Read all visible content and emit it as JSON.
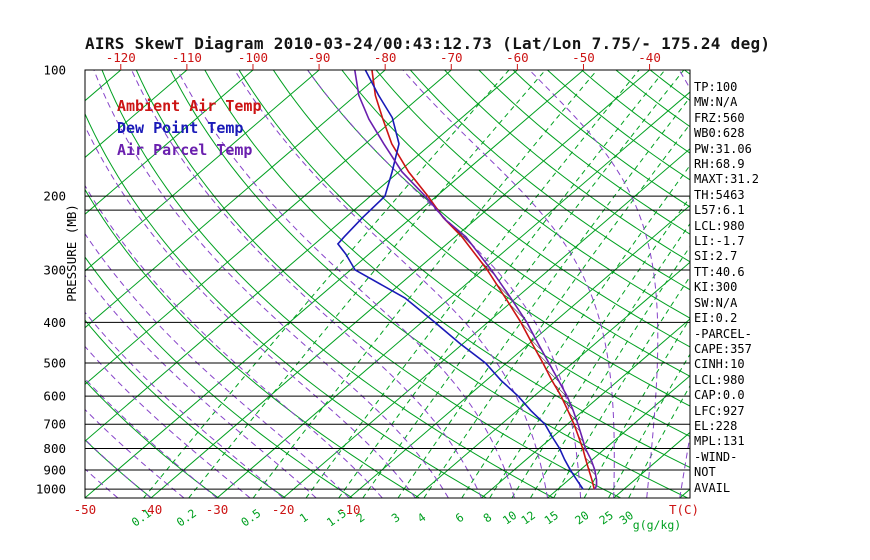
{
  "title": "AIRS SkewT Diagram 2010-03-24/00:43:12.73 (Lat/Lon 7.75/- 175.24 deg)",
  "legend": [
    {
      "label": "Ambient Air Temp",
      "color": "#cc1414"
    },
    {
      "label": "Dew Point Temp",
      "color": "#1a1ab8"
    },
    {
      "label": "Air Parcel Temp",
      "color": "#6a1fae"
    }
  ],
  "axes": {
    "pressure_label": "PRESSURE (MB)",
    "pressure_ticks": [
      100,
      200,
      300,
      400,
      500,
      600,
      700,
      800,
      900,
      1000
    ],
    "top_temp_ticks_C": [
      -120,
      -110,
      -100,
      -90,
      -80,
      -70,
      -60,
      -50,
      -40
    ],
    "bottom_temp_ticks_C": [
      -50,
      -40,
      -30,
      -20,
      -10
    ],
    "temp_unit_label": "T(C)",
    "mixing_ratio_unit_label": "g(g/kg)",
    "mixing_ratio_ticks_g_kg": [
      0.1,
      0.2,
      0.5,
      1,
      1.5,
      2,
      3,
      4,
      6,
      8,
      10,
      12,
      15,
      20,
      25,
      30
    ]
  },
  "stats_panel": {
    "items": [
      "TP:100",
      "MW:N/A",
      "FRZ:560",
      "WB0:628",
      "PW:31.06",
      "RH:68.9",
      "MAXT:31.2",
      "TH:5463",
      "L57:6.1",
      "LCL:980",
      "LI:-1.7",
      "SI:2.7",
      "TT:40.6",
      "KI:300",
      "SW:N/A",
      "EI:0.2",
      "-PARCEL-",
      "CAPE:357",
      "CINH:10",
      "LCL:980",
      "CAP:0.0",
      "LFC:927",
      "EL:228",
      "MPL:131",
      "-WIND-",
      "NOT",
      "AVAIL"
    ]
  },
  "chart_data": {
    "type": "line",
    "title": "AIRS SkewT Diagram",
    "x_axis_label": "T(C)",
    "y_axis_label": "PRESSURE (MB)",
    "y_scale": "log",
    "ylim": [
      1050,
      100
    ],
    "grid": {
      "isotherms_C": {
        "min": -130,
        "max": 40,
        "step": 10,
        "color": "#00a020"
      },
      "dry_adiabats_K": {
        "min": 220,
        "max": 460,
        "step": 10,
        "color": "#00a020"
      },
      "moist_adiabats_start_C": {
        "min": -60,
        "max": 40,
        "step": 5,
        "color": "#8743c9"
      },
      "mixing_ratios_g_kg": [
        0.1,
        0.2,
        0.5,
        1,
        1.5,
        2,
        3,
        4,
        6,
        8,
        10,
        12,
        15,
        20,
        25,
        30
      ],
      "aux_pressure_lines_mb": [
        216
      ]
    },
    "series": [
      {
        "name": "Ambient Air Temp",
        "color": "#cc1414",
        "points": [
          [
            1000,
            25.5
          ],
          [
            950,
            23.5
          ],
          [
            900,
            21.3
          ],
          [
            850,
            19.0
          ],
          [
            800,
            16.6
          ],
          [
            750,
            13.9
          ],
          [
            700,
            11.0
          ],
          [
            650,
            7.7
          ],
          [
            600,
            4.1
          ],
          [
            550,
            -0.1
          ],
          [
            500,
            -4.5
          ],
          [
            450,
            -9.5
          ],
          [
            400,
            -15.0
          ],
          [
            350,
            -21.6
          ],
          [
            300,
            -29.3
          ],
          [
            250,
            -39.0
          ],
          [
            225,
            -45.2
          ],
          [
            200,
            -51.3
          ],
          [
            175,
            -58.5
          ],
          [
            150,
            -66.0
          ],
          [
            130,
            -72.0
          ],
          [
            115,
            -77.0
          ],
          [
            100,
            -82.0
          ]
        ]
      },
      {
        "name": "Dew Point Temp",
        "color": "#1a1ab8",
        "points": [
          [
            1000,
            23.8
          ],
          [
            950,
            21.2
          ],
          [
            900,
            18.5
          ],
          [
            850,
            15.8
          ],
          [
            800,
            13.1
          ],
          [
            750,
            9.9
          ],
          [
            700,
            6.6
          ],
          [
            650,
            2.1
          ],
          [
            600,
            -2.4
          ],
          [
            550,
            -7.8
          ],
          [
            500,
            -13.2
          ],
          [
            450,
            -20.4
          ],
          [
            400,
            -28.0
          ],
          [
            350,
            -36.8
          ],
          [
            300,
            -49.3
          ],
          [
            275,
            -53.5
          ],
          [
            260,
            -56.5
          ],
          [
            250,
            -56.8
          ],
          [
            225,
            -57.4
          ],
          [
            200,
            -57.8
          ],
          [
            175,
            -61.0
          ],
          [
            150,
            -64.9
          ],
          [
            130,
            -70.5
          ],
          [
            115,
            -76.5
          ],
          [
            100,
            -83.0
          ]
        ]
      },
      {
        "name": "Air Parcel Temp",
        "color": "#6a1fae",
        "points": [
          [
            1000,
            25.6
          ],
          [
            980,
            25.2
          ],
          [
            950,
            24.2
          ],
          [
            900,
            22.2
          ],
          [
            850,
            19.8
          ],
          [
            800,
            17.0
          ],
          [
            750,
            14.4
          ],
          [
            700,
            11.6
          ],
          [
            650,
            8.5
          ],
          [
            600,
            5.0
          ],
          [
            550,
            0.9
          ],
          [
            500,
            -3.6
          ],
          [
            450,
            -8.6
          ],
          [
            400,
            -14.1
          ],
          [
            350,
            -20.8
          ],
          [
            300,
            -28.7
          ],
          [
            250,
            -38.4
          ],
          [
            228,
            -44.4
          ],
          [
            200,
            -51.7
          ],
          [
            175,
            -59.5
          ],
          [
            150,
            -67.2
          ],
          [
            131,
            -73.8
          ],
          [
            115,
            -79.5
          ],
          [
            100,
            -84.6
          ]
        ]
      }
    ],
    "cape_hatch": {
      "between": [
        "Air Parcel Temp",
        "Ambient Air Temp"
      ],
      "pressure_range_mb": [
        927,
        228
      ]
    }
  }
}
